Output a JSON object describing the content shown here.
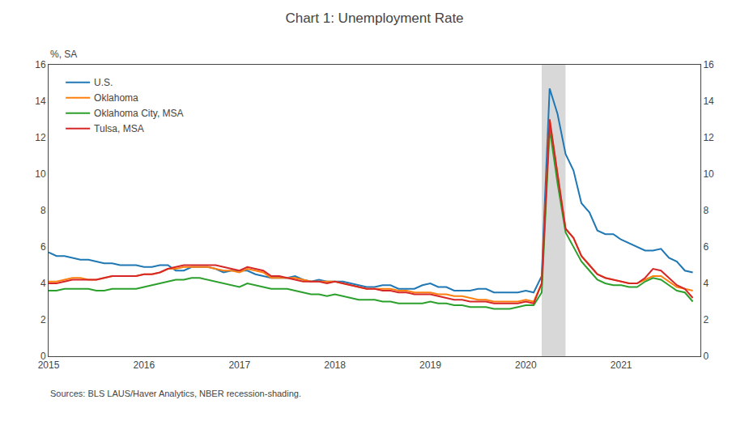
{
  "chart_data": {
    "type": "line",
    "title": "Chart 1: Unemployment Rate",
    "ylabel": "%, SA",
    "source": "Sources: BLS LAUS/Haver Analytics, NBER recession-shading.",
    "x": [
      2015.0,
      2015.083,
      2015.167,
      2015.25,
      2015.333,
      2015.417,
      2015.5,
      2015.583,
      2015.667,
      2015.75,
      2015.833,
      2015.917,
      2016.0,
      2016.083,
      2016.167,
      2016.25,
      2016.333,
      2016.417,
      2016.5,
      2016.583,
      2016.667,
      2016.75,
      2016.833,
      2016.917,
      2017.0,
      2017.083,
      2017.167,
      2017.25,
      2017.333,
      2017.417,
      2017.5,
      2017.583,
      2017.667,
      2017.75,
      2017.833,
      2017.917,
      2018.0,
      2018.083,
      2018.167,
      2018.25,
      2018.333,
      2018.417,
      2018.5,
      2018.583,
      2018.667,
      2018.75,
      2018.833,
      2018.917,
      2019.0,
      2019.083,
      2019.167,
      2019.25,
      2019.333,
      2019.417,
      2019.5,
      2019.583,
      2019.667,
      2019.75,
      2019.833,
      2019.917,
      2020.0,
      2020.083,
      2020.167,
      2020.25,
      2020.333,
      2020.417,
      2020.5,
      2020.583,
      2020.667,
      2020.75,
      2020.833,
      2020.917,
      2021.0,
      2021.083,
      2021.167,
      2021.25,
      2021.333,
      2021.417,
      2021.5,
      2021.583,
      2021.667,
      2021.75
    ],
    "series": [
      {
        "name": "U.S.",
        "values": [
          5.7,
          5.5,
          5.5,
          5.4,
          5.3,
          5.3,
          5.2,
          5.1,
          5.1,
          5.0,
          5.0,
          5.0,
          4.9,
          4.9,
          5.0,
          5.0,
          4.7,
          4.7,
          4.9,
          4.9,
          4.9,
          4.8,
          4.6,
          4.7,
          4.7,
          4.7,
          4.5,
          4.4,
          4.3,
          4.3,
          4.3,
          4.4,
          4.2,
          4.1,
          4.2,
          4.1,
          4.1,
          4.1,
          4.0,
          3.9,
          3.8,
          3.8,
          3.9,
          3.9,
          3.7,
          3.7,
          3.7,
          3.9,
          4.0,
          3.8,
          3.8,
          3.6,
          3.6,
          3.6,
          3.7,
          3.7,
          3.5,
          3.5,
          3.5,
          3.5,
          3.6,
          3.5,
          4.4,
          14.7,
          13.3,
          11.1,
          10.2,
          8.4,
          7.9,
          6.9,
          6.7,
          6.7,
          6.4,
          6.2,
          6.0,
          5.8,
          5.8,
          5.9,
          5.4,
          5.2,
          4.7,
          4.6
        ]
      },
      {
        "name": "Oklahoma",
        "values": [
          4.1,
          4.1,
          4.2,
          4.3,
          4.3,
          4.2,
          4.2,
          4.3,
          4.4,
          4.4,
          4.4,
          4.4,
          4.5,
          4.5,
          4.6,
          4.8,
          4.8,
          4.9,
          4.9,
          4.9,
          4.9,
          4.8,
          4.7,
          4.7,
          4.6,
          4.8,
          4.7,
          4.6,
          4.3,
          4.3,
          4.3,
          4.3,
          4.2,
          4.1,
          4.1,
          4.1,
          4.1,
          4.0,
          3.9,
          3.8,
          3.7,
          3.7,
          3.7,
          3.7,
          3.6,
          3.6,
          3.5,
          3.5,
          3.5,
          3.4,
          3.4,
          3.3,
          3.3,
          3.2,
          3.1,
          3.1,
          3.0,
          3.0,
          3.0,
          3.0,
          3.1,
          3.0,
          4.0,
          13.0,
          10.0,
          7.0,
          6.5,
          5.5,
          5.0,
          4.5,
          4.3,
          4.2,
          4.1,
          4.0,
          4.0,
          4.2,
          4.4,
          4.4,
          4.1,
          3.8,
          3.7,
          3.6
        ]
      },
      {
        "name": "Oklahoma City, MSA",
        "values": [
          3.6,
          3.6,
          3.7,
          3.7,
          3.7,
          3.7,
          3.6,
          3.6,
          3.7,
          3.7,
          3.7,
          3.7,
          3.8,
          3.9,
          4.0,
          4.1,
          4.2,
          4.2,
          4.3,
          4.3,
          4.2,
          4.1,
          4.0,
          3.9,
          3.8,
          4.0,
          3.9,
          3.8,
          3.7,
          3.7,
          3.7,
          3.6,
          3.5,
          3.4,
          3.4,
          3.3,
          3.4,
          3.3,
          3.2,
          3.1,
          3.1,
          3.1,
          3.0,
          3.0,
          2.9,
          2.9,
          2.9,
          2.9,
          3.0,
          2.9,
          2.9,
          2.8,
          2.8,
          2.7,
          2.7,
          2.7,
          2.6,
          2.6,
          2.6,
          2.7,
          2.8,
          2.8,
          3.5,
          12.5,
          9.5,
          6.8,
          6.0,
          5.2,
          4.7,
          4.2,
          4.0,
          3.9,
          3.9,
          3.8,
          3.8,
          4.1,
          4.3,
          4.2,
          3.9,
          3.6,
          3.5,
          3.0
        ]
      },
      {
        "name": "Tulsa, MSA",
        "values": [
          4.0,
          4.0,
          4.1,
          4.2,
          4.2,
          4.2,
          4.2,
          4.3,
          4.4,
          4.4,
          4.4,
          4.4,
          4.5,
          4.5,
          4.6,
          4.8,
          4.9,
          5.0,
          5.0,
          5.0,
          5.0,
          5.0,
          4.9,
          4.8,
          4.7,
          4.9,
          4.8,
          4.7,
          4.4,
          4.4,
          4.3,
          4.2,
          4.1,
          4.1,
          4.1,
          4.0,
          4.1,
          4.0,
          3.9,
          3.8,
          3.7,
          3.7,
          3.6,
          3.6,
          3.5,
          3.5,
          3.4,
          3.4,
          3.4,
          3.3,
          3.2,
          3.1,
          3.1,
          3.0,
          3.0,
          3.0,
          2.9,
          2.9,
          2.9,
          2.9,
          3.0,
          2.9,
          4.0,
          13.0,
          10.0,
          7.0,
          6.5,
          5.5,
          5.0,
          4.5,
          4.3,
          4.2,
          4.1,
          4.0,
          4.0,
          4.3,
          4.8,
          4.7,
          4.3,
          3.9,
          3.7,
          3.2
        ]
      }
    ],
    "xlim": [
      2015.0,
      2021.83
    ],
    "xticks": [
      2015,
      2016,
      2017,
      2018,
      2019,
      2020,
      2021
    ],
    "ylim": [
      0,
      16
    ],
    "yticks": [
      0,
      2,
      4,
      6,
      8,
      10,
      12,
      14,
      16
    ],
    "y2lim": [
      0,
      16
    ],
    "y2ticks": [
      0,
      2,
      4,
      6,
      8,
      10,
      12,
      14,
      16
    ],
    "shaded": [
      {
        "x0": 2020.167,
        "x1": 2020.417,
        "color": "#d8d8d8"
      }
    ],
    "grid": false,
    "legend": "upper left"
  }
}
